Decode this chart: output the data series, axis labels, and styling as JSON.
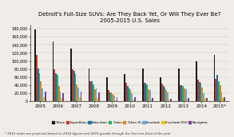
{
  "title": "Detroit's Full-Size SUVs: Are They Back Yet, Or Will They Ever Be?\n2005-2015 U.S. Sales",
  "footnote": "* 2015 totals are projected based on 2014 figures and 2015 growth through the first one-third of the year",
  "years": [
    "2005",
    "2006",
    "2007",
    "2008",
    "2009",
    "2010",
    "2011",
    "2012",
    "2013",
    "2014",
    "2015*"
  ],
  "series": {
    "Tahoe": [
      178000,
      148000,
      130000,
      82000,
      60000,
      68000,
      82000,
      60000,
      82000,
      100000,
      115000
    ],
    "Expedition": [
      115000,
      80000,
      80000,
      50000,
      28000,
      45000,
      46000,
      43000,
      40000,
      54000,
      55000
    ],
    "Suburban": [
      82000,
      70000,
      75000,
      50000,
      22000,
      38000,
      45000,
      38000,
      40000,
      47000,
      65000
    ],
    "Yukon": [
      70000,
      65000,
      68000,
      42000,
      22000,
      33000,
      42000,
      35000,
      38000,
      45000,
      50000
    ],
    "Yukon XL": [
      50000,
      38000,
      42000,
      30000,
      18000,
      28000,
      30000,
      28000,
      32000,
      34000,
      40000
    ],
    "Escalade": [
      33000,
      25000,
      35000,
      35000,
      15000,
      20000,
      28000,
      22000,
      30000,
      20000,
      22000
    ],
    "Escalade ESV": [
      10000,
      8000,
      10000,
      9000,
      3000,
      4000,
      4000,
      4000,
      4000,
      9000,
      9000
    ],
    "Navigator": [
      25000,
      20000,
      25000,
      22000,
      10000,
      10000,
      8000,
      6000,
      8000,
      8000,
      10000
    ]
  },
  "colors": {
    "Tahoe": "#1a1a1a",
    "Expedition": "#c0392b",
    "Suburban": "#2471a3",
    "Yukon": "#27ae60",
    "Yukon XL": "#e67e22",
    "Escalade": "#5dade2",
    "Escalade ESV": "#f1c40f",
    "Navigator": "#7d3c98"
  },
  "ylim": [
    0,
    190000
  ],
  "yticks": [
    0,
    20000,
    40000,
    60000,
    80000,
    100000,
    120000,
    140000,
    160000,
    180000
  ],
  "ytick_labels": [
    "0",
    "20,000",
    "40,000",
    "60,000",
    "80,000",
    "100,000",
    "120,000",
    "140,000",
    "160,000",
    "180,000"
  ],
  "background_color": "#f0ede8"
}
